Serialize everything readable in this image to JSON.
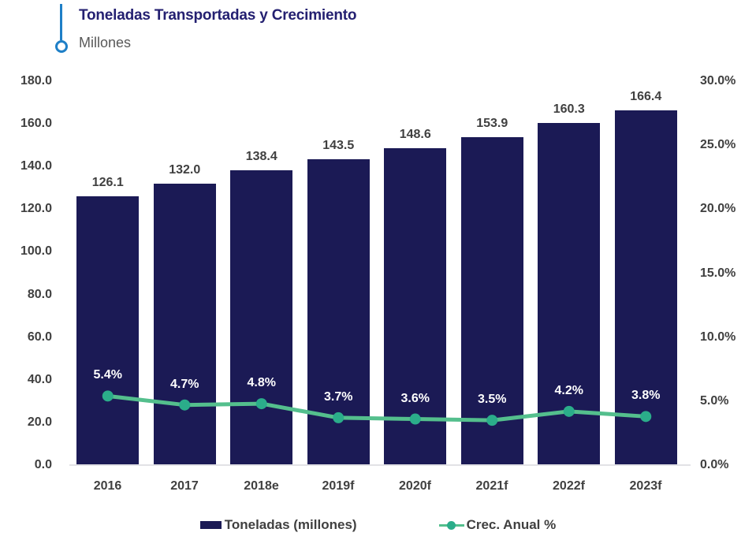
{
  "header": {
    "title": "Toneladas Transportadas y Crecimiento",
    "subtitle": "Millones"
  },
  "legend": {
    "bars_label": "Toneladas (millones)",
    "line_label": "Crec. Anual %"
  },
  "chart_data": {
    "type": "combo-bar-line",
    "title": "Toneladas Transportadas y Crecimiento",
    "subtitle": "Millones",
    "categories": [
      "2016",
      "2017",
      "2018e",
      "2019f",
      "2020f",
      "2021f",
      "2022f",
      "2023f"
    ],
    "series": [
      {
        "name": "Toneladas (millones)",
        "type": "bar",
        "axis": "left",
        "values": [
          126.1,
          132.0,
          138.4,
          143.5,
          148.6,
          153.9,
          160.3,
          166.4
        ],
        "labels": [
          "126.1",
          "132.0",
          "138.4",
          "143.5",
          "148.6",
          "153.9",
          "160.3",
          "166.4"
        ]
      },
      {
        "name": "Crec. Anual %",
        "type": "line",
        "axis": "right",
        "values": [
          5.4,
          4.7,
          4.8,
          3.7,
          3.6,
          3.5,
          4.2,
          3.8
        ],
        "labels": [
          "5.4%",
          "4.7%",
          "4.8%",
          "3.7%",
          "3.6%",
          "3.5%",
          "4.2%",
          "3.8%"
        ]
      }
    ],
    "left_axis": {
      "min": 0,
      "max": 180,
      "tick_labels": [
        "180.0",
        "160.0",
        "140.0",
        "120.0",
        "100.0",
        "80.0",
        "60.0",
        "40.0",
        "20.0",
        "0.0"
      ]
    },
    "right_axis": {
      "min": 0,
      "max": 30,
      "tick_labels": [
        "30.0%",
        "25.0%",
        "20.0%",
        "15.0%",
        "10.0%",
        "5.0%",
        "0.0%"
      ]
    },
    "grid": false,
    "legend_position": "bottom"
  },
  "colors": {
    "bar": "#1B1A55",
    "line": "#54BF8D",
    "marker": "#2BAD8A",
    "accent": "#1E7FC7",
    "title": "#242071",
    "axis_label": "#404040",
    "subtitle": "#595959",
    "baseline": "#E2E2E6",
    "growth_label_text": "#FFFFFF"
  }
}
